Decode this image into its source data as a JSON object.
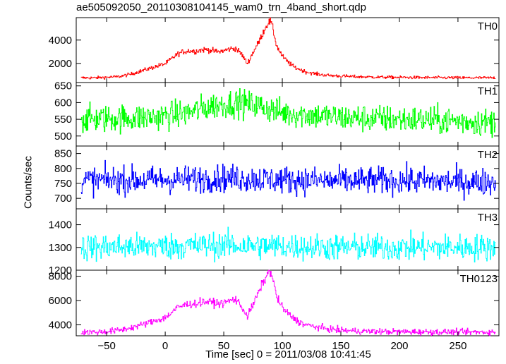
{
  "chart_data": {
    "type": "line",
    "title": "ae505092050_20110308104145_wam0_trn_4band_short.qdp",
    "xlabel": "Time [sec] 0 = 2011/03/08 10:41:45",
    "ylabel": "Counts/sec",
    "xlim": [
      -76,
      285
    ],
    "xticks": [
      -50,
      0,
      50,
      100,
      150,
      200,
      250
    ],
    "grid": false,
    "panels": [
      {
        "name": "TH0",
        "color": "#ff0000",
        "ylim": [
          400,
          5900
        ],
        "yticks": [
          2000,
          4000
        ],
        "x": [
          -72,
          -60,
          -50,
          -40,
          -30,
          -20,
          -10,
          0,
          5,
          10,
          15,
          20,
          25,
          30,
          35,
          40,
          45,
          50,
          55,
          60,
          65,
          70,
          75,
          80,
          85,
          88,
          90,
          92,
          95,
          100,
          105,
          110,
          115,
          120,
          130,
          140,
          150,
          160,
          180,
          200,
          220,
          240,
          260,
          282
        ],
        "values": [
          800,
          800,
          850,
          900,
          1100,
          1400,
          1700,
          2000,
          2400,
          2800,
          3000,
          3100,
          3050,
          3150,
          3200,
          3100,
          3000,
          3100,
          3250,
          3300,
          2800,
          2000,
          3000,
          3900,
          5000,
          5500,
          5600,
          4800,
          3500,
          2600,
          2100,
          1700,
          1500,
          1300,
          1100,
          1000,
          950,
          900,
          860,
          840,
          820,
          810,
          800,
          800
        ]
      },
      {
        "name": "TH1",
        "color": "#00ff00",
        "ylim": [
          470,
          660
        ],
        "yticks": [
          500,
          550,
          600,
          650
        ],
        "x": [
          -72,
          -20,
          0,
          20,
          40,
          60,
          80,
          100,
          150,
          200,
          250,
          282
        ],
        "values": [
          550,
          555,
          560,
          570,
          590,
          600,
          590,
          570,
          555,
          550,
          545,
          540
        ]
      },
      {
        "name": "TH2",
        "color": "#0000ff",
        "ylim": [
          665,
          875
        ],
        "yticks": [
          700,
          750,
          800,
          850
        ],
        "x": [
          -72,
          0,
          50,
          100,
          150,
          200,
          250,
          282
        ],
        "values": [
          760,
          762,
          768,
          762,
          758,
          760,
          755,
          755
        ]
      },
      {
        "name": "TH3",
        "color": "#00ffff",
        "ylim": [
          1200,
          1470
        ],
        "yticks": [
          1200,
          1300,
          1400
        ],
        "x": [
          -72,
          0,
          50,
          100,
          150,
          200,
          250,
          282
        ],
        "values": [
          1300,
          1305,
          1310,
          1305,
          1300,
          1300,
          1300,
          1300
        ]
      },
      {
        "name": "TH0123",
        "color": "#ff00ff",
        "ylim": [
          3100,
          8500
        ],
        "yticks": [
          4000,
          6000,
          8000
        ],
        "x": [
          -72,
          -60,
          -50,
          -40,
          -30,
          -20,
          -10,
          0,
          5,
          10,
          15,
          20,
          25,
          30,
          35,
          40,
          45,
          50,
          55,
          60,
          65,
          70,
          75,
          80,
          85,
          88,
          90,
          92,
          95,
          100,
          105,
          110,
          115,
          120,
          130,
          140,
          150,
          160,
          180,
          200,
          220,
          240,
          260,
          282
        ],
        "values": [
          3400,
          3400,
          3450,
          3550,
          3750,
          4000,
          4300,
          4600,
          5000,
          5400,
          5600,
          5700,
          5750,
          5850,
          5900,
          5850,
          5750,
          5800,
          6000,
          6100,
          5500,
          4700,
          5700,
          6800,
          7800,
          8300,
          8400,
          7600,
          6300,
          5400,
          4900,
          4500,
          4200,
          4000,
          3800,
          3650,
          3550,
          3500,
          3450,
          3430,
          3420,
          3410,
          3400,
          3400
        ]
      }
    ]
  }
}
